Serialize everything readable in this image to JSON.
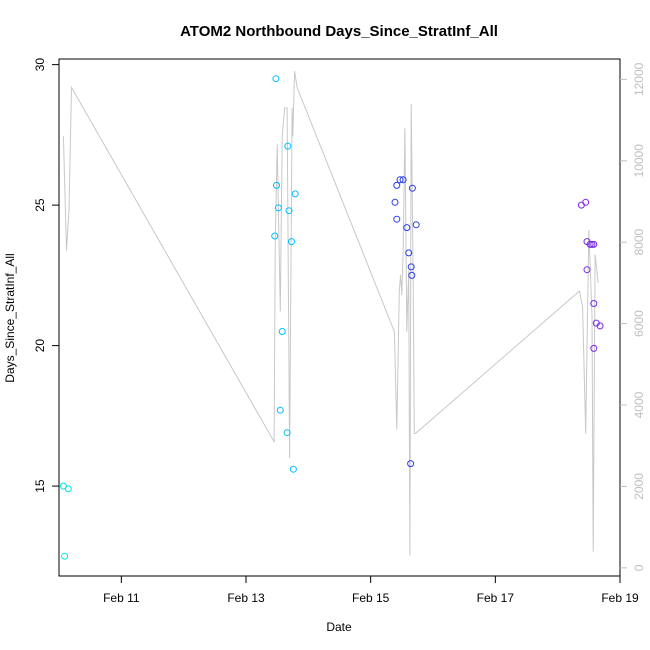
{
  "chart_data": {
    "type": "scatter",
    "title": "ATOM2 Northbound Days_Since_StratInf_All",
    "xlabel": "Date",
    "ylabel": "Days_Since_StratInf_All",
    "x_unit": "days since Feb 10 00:00",
    "xlim": [
      0.0,
      9.0
    ],
    "ylim": [
      11.8,
      30.2
    ],
    "y2lim": [
      -200,
      12500
    ],
    "x_ticks": [
      {
        "value": 1,
        "label": "Feb 11"
      },
      {
        "value": 3,
        "label": "Feb 13"
      },
      {
        "value": 5,
        "label": "Feb 15"
      },
      {
        "value": 7,
        "label": "Feb 17"
      },
      {
        "value": 9,
        "label": "Feb 19"
      }
    ],
    "y_ticks": [
      {
        "value": 15,
        "label": "15"
      },
      {
        "value": 20,
        "label": "20"
      },
      {
        "value": 25,
        "label": "25"
      },
      {
        "value": 30,
        "label": "30"
      }
    ],
    "y2_ticks": [
      {
        "value": 0,
        "label": "0"
      },
      {
        "value": 2000,
        "label": "2000"
      },
      {
        "value": 4000,
        "label": "4000"
      },
      {
        "value": 6000,
        "label": "6000"
      },
      {
        "value": 8000,
        "label": "8000"
      },
      {
        "value": 10000,
        "label": "10000"
      },
      {
        "value": 12000,
        "label": "12000"
      }
    ],
    "colors": {
      "line": "#c8c8c8",
      "points": [
        "#00e5e5",
        "#00bfff",
        "#1e90ff",
        "#2a3fe8",
        "#7b2be8"
      ],
      "axis": "#000000",
      "right_axis": "#bfbfbf"
    },
    "points": [
      {
        "x": 0.07,
        "y": 15.0,
        "c": 0
      },
      {
        "x": 0.09,
        "y": 12.5,
        "c": 0
      },
      {
        "x": 0.15,
        "y": 14.9,
        "c": 0
      },
      {
        "x": 3.46,
        "y": 23.9,
        "c": 1
      },
      {
        "x": 3.48,
        "y": 29.5,
        "c": 1
      },
      {
        "x": 3.49,
        "y": 25.7,
        "c": 1
      },
      {
        "x": 3.52,
        "y": 24.9,
        "c": 1
      },
      {
        "x": 3.55,
        "y": 17.7,
        "c": 1
      },
      {
        "x": 3.58,
        "y": 20.5,
        "c": 1
      },
      {
        "x": 3.66,
        "y": 16.9,
        "c": 1
      },
      {
        "x": 3.67,
        "y": 27.1,
        "c": 1
      },
      {
        "x": 3.69,
        "y": 24.8,
        "c": 1
      },
      {
        "x": 3.73,
        "y": 23.7,
        "c": 1
      },
      {
        "x": 3.76,
        "y": 15.6,
        "c": 1
      },
      {
        "x": 3.79,
        "y": 25.4,
        "c": 1
      },
      {
        "x": 5.39,
        "y": 25.1,
        "c": 3
      },
      {
        "x": 5.42,
        "y": 25.7,
        "c": 3
      },
      {
        "x": 5.42,
        "y": 24.5,
        "c": 3
      },
      {
        "x": 5.47,
        "y": 25.9,
        "c": 3
      },
      {
        "x": 5.52,
        "y": 25.9,
        "c": 3
      },
      {
        "x": 5.58,
        "y": 24.2,
        "c": 3
      },
      {
        "x": 5.61,
        "y": 23.3,
        "c": 3
      },
      {
        "x": 5.64,
        "y": 15.8,
        "c": 3
      },
      {
        "x": 5.65,
        "y": 22.8,
        "c": 3
      },
      {
        "x": 5.66,
        "y": 22.5,
        "c": 3
      },
      {
        "x": 5.67,
        "y": 25.6,
        "c": 3
      },
      {
        "x": 5.73,
        "y": 24.3,
        "c": 3
      },
      {
        "x": 8.38,
        "y": 25.0,
        "c": 4
      },
      {
        "x": 8.45,
        "y": 25.1,
        "c": 4
      },
      {
        "x": 8.47,
        "y": 23.7,
        "c": 4
      },
      {
        "x": 8.47,
        "y": 22.7,
        "c": 4
      },
      {
        "x": 8.52,
        "y": 23.6,
        "c": 4
      },
      {
        "x": 8.55,
        "y": 23.6,
        "c": 4
      },
      {
        "x": 8.58,
        "y": 23.6,
        "c": 4
      },
      {
        "x": 8.58,
        "y": 21.5,
        "c": 4
      },
      {
        "x": 8.58,
        "y": 19.9,
        "c": 4
      },
      {
        "x": 8.62,
        "y": 20.8,
        "c": 4
      },
      {
        "x": 8.68,
        "y": 20.7,
        "c": 4
      }
    ],
    "line_series": {
      "name": "secondary (right axis)",
      "x": [
        0.07,
        0.12,
        0.16,
        0.2,
        0.2,
        3.45,
        3.47,
        3.5,
        3.55,
        3.58,
        3.62,
        3.66,
        3.7,
        3.74,
        3.75,
        3.78,
        3.82,
        5.38,
        5.42,
        5.46,
        5.48,
        5.5,
        5.52,
        5.55,
        5.58,
        5.61,
        5.63,
        5.65,
        5.68,
        5.7,
        5.72,
        8.35,
        8.4,
        8.45,
        8.5,
        8.55,
        8.57,
        8.6,
        8.65
      ],
      "y": [
        10600,
        7800,
        8800,
        11800,
        11800,
        3100,
        8100,
        10400,
        6300,
        10600,
        11300,
        11300,
        2700,
        11300,
        10600,
        12200,
        11800,
        5800,
        3400,
        6800,
        7200,
        6700,
        7700,
        10800,
        5800,
        7300,
        300,
        11400,
        7300,
        3300,
        3300,
        6800,
        6400,
        3300,
        8300,
        6200,
        400,
        7700,
        7000
      ]
    }
  }
}
